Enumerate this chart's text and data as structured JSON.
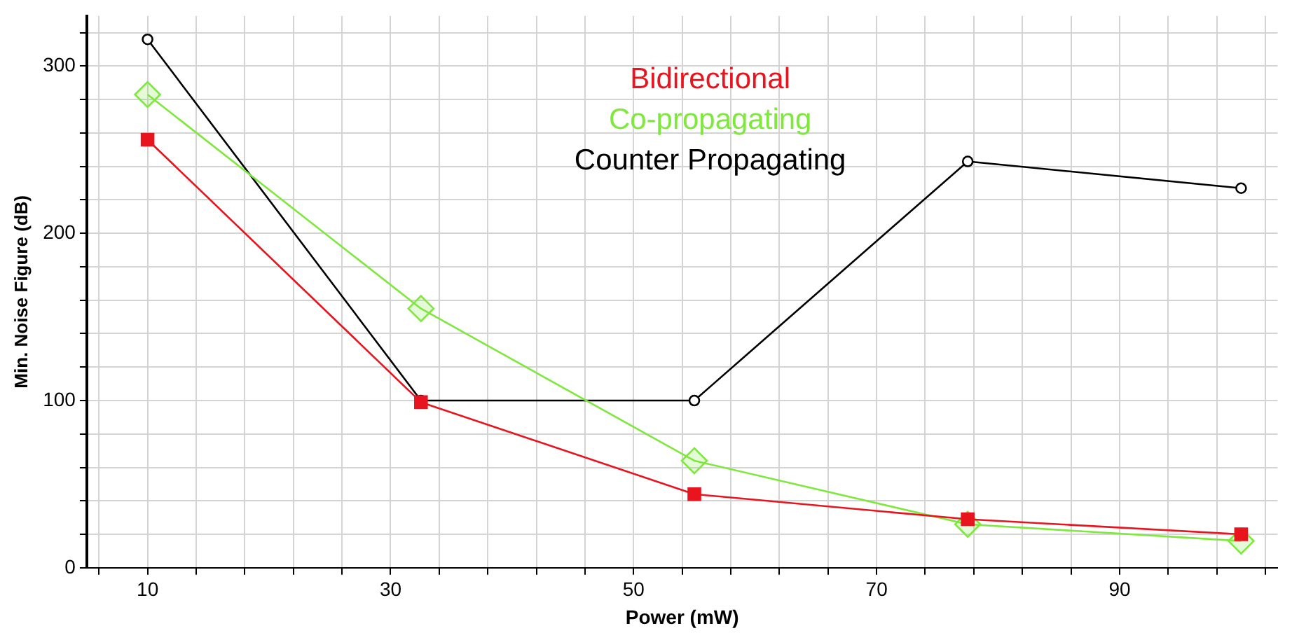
{
  "chart_data": {
    "type": "line",
    "xlabel": "Power (mW)",
    "ylabel": "Min. Noise Figure (dB)",
    "xlim": [
      5,
      103
    ],
    "ylim": [
      0,
      330
    ],
    "xticks": [
      {
        "value": 6,
        "label": null
      },
      {
        "value": 10,
        "label": "10"
      },
      {
        "value": 14,
        "label": null
      },
      {
        "value": 18,
        "label": null
      },
      {
        "value": 22,
        "label": null
      },
      {
        "value": 26,
        "label": null
      },
      {
        "value": 30,
        "label": "30"
      },
      {
        "value": 34,
        "label": null
      },
      {
        "value": 38,
        "label": null
      },
      {
        "value": 42,
        "label": null
      },
      {
        "value": 46,
        "label": null
      },
      {
        "value": 50,
        "label": "50"
      },
      {
        "value": 54,
        "label": null
      },
      {
        "value": 58,
        "label": null
      },
      {
        "value": 62,
        "label": null
      },
      {
        "value": 66,
        "label": null
      },
      {
        "value": 70,
        "label": "70"
      },
      {
        "value": 74,
        "label": null
      },
      {
        "value": 78,
        "label": null
      },
      {
        "value": 82,
        "label": null
      },
      {
        "value": 86,
        "label": null
      },
      {
        "value": 90,
        "label": "90"
      },
      {
        "value": 94,
        "label": null
      },
      {
        "value": 98,
        "label": null
      },
      {
        "value": 102,
        "label": null
      }
    ],
    "yticks": [
      0,
      {
        "value": 20,
        "label": null
      },
      {
        "value": 40,
        "label": null
      },
      {
        "value": 60,
        "label": null
      },
      {
        "value": 80,
        "label": null
      },
      100,
      {
        "value": 120,
        "label": null
      },
      {
        "value": 140,
        "label": null
      },
      {
        "value": 160,
        "label": null
      },
      {
        "value": 180,
        "label": null
      },
      200,
      {
        "value": 220,
        "label": null
      },
      {
        "value": 240,
        "label": null
      },
      {
        "value": 260,
        "label": null
      },
      {
        "value": 280,
        "label": null
      },
      300,
      {
        "value": 320,
        "label": null
      }
    ],
    "grid": true,
    "legend": "top",
    "line_style": "solid",
    "x": [
      10,
      32.5,
      55,
      77.5,
      100
    ],
    "series": [
      {
        "name": "Bidirectional",
        "color": "#e8141e",
        "marker": "square",
        "values": [
          256,
          99,
          44,
          29,
          20
        ]
      },
      {
        "name": "Co-propagating",
        "color": "#7ee83c",
        "marker": "diamond",
        "values": [
          283,
          155,
          64,
          26,
          16
        ]
      },
      {
        "name": "Counter Propagating",
        "color": "#000000",
        "marker": "circle",
        "values": [
          316,
          100,
          100,
          243,
          227
        ]
      }
    ]
  }
}
